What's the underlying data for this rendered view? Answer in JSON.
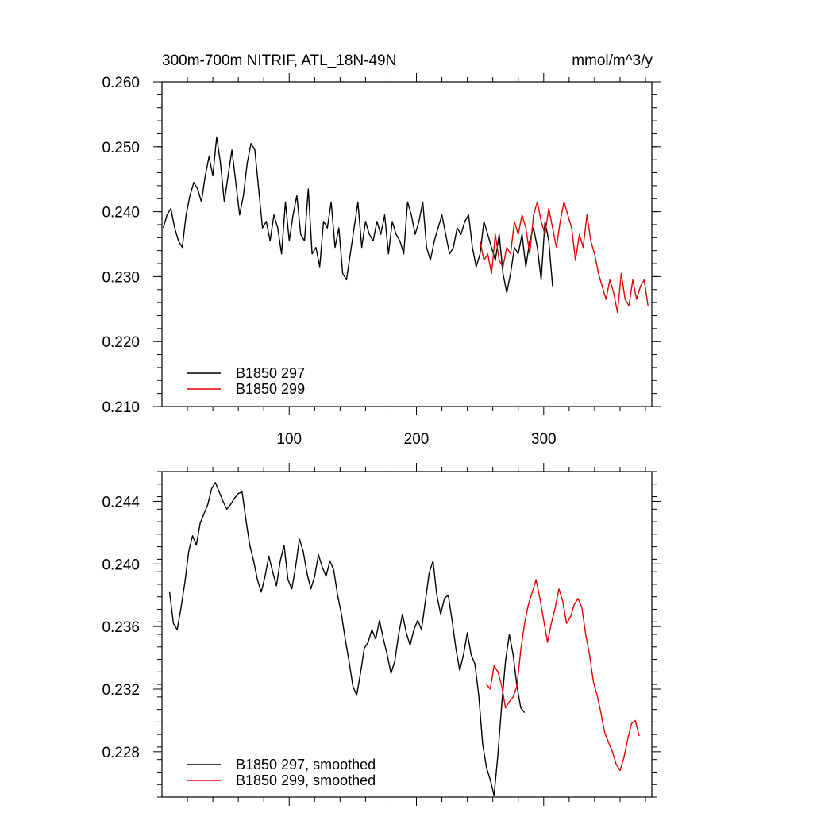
{
  "chart_data": [
    {
      "type": "line",
      "title": "300m-700m NITRIF, ATL_18N-49N",
      "units": "mmol/m^3/y",
      "xlim": [
        0,
        385
      ],
      "ylim": [
        0.21,
        0.26
      ],
      "xticks": [
        100,
        200,
        300
      ],
      "xtick_labels": [
        "100",
        "200",
        "300"
      ],
      "yticks": [
        0.21,
        0.22,
        0.23,
        0.24,
        0.25,
        0.26
      ],
      "ytick_labels": [
        "0.210",
        "0.220",
        "0.230",
        "0.240",
        "0.250",
        "0.260"
      ],
      "legend_position": "bottom-left",
      "series": [
        {
          "name": "B1850 297",
          "color": "#000000",
          "x_start": 1,
          "x_step": 3,
          "values": [
            0.2375,
            0.2395,
            0.2405,
            0.2375,
            0.2355,
            0.2345,
            0.2395,
            0.2425,
            0.2445,
            0.2435,
            0.2415,
            0.2455,
            0.2485,
            0.2455,
            0.2515,
            0.2475,
            0.2415,
            0.2455,
            0.2495,
            0.2445,
            0.2395,
            0.2425,
            0.2475,
            0.2505,
            0.2495,
            0.2435,
            0.2375,
            0.2385,
            0.2355,
            0.2395,
            0.2375,
            0.2335,
            0.2415,
            0.2355,
            0.2395,
            0.2425,
            0.2365,
            0.2355,
            0.2435,
            0.2335,
            0.2345,
            0.2315,
            0.2385,
            0.2375,
            0.2415,
            0.2345,
            0.2375,
            0.2305,
            0.2295,
            0.2335,
            0.2375,
            0.2415,
            0.2345,
            0.2385,
            0.2365,
            0.2355,
            0.2385,
            0.2365,
            0.2395,
            0.2335,
            0.2385,
            0.2365,
            0.2355,
            0.2335,
            0.2415,
            0.2395,
            0.2365,
            0.2385,
            0.2415,
            0.2345,
            0.2325,
            0.2355,
            0.2375,
            0.2395,
            0.2365,
            0.2335,
            0.2345,
            0.2375,
            0.2365,
            0.2385,
            0.2395,
            0.2345,
            0.2315,
            0.2335,
            0.2385,
            0.2365,
            0.2345,
            0.2325,
            0.2365,
            0.2305,
            0.2275,
            0.2305,
            0.2345,
            0.2335,
            0.2365,
            0.2315,
            0.2355,
            0.2375,
            0.2345,
            0.2295,
            0.2385,
            0.2355,
            0.2285
          ]
        },
        {
          "name": "B1850 299",
          "color": "#e60000",
          "x_start": 250,
          "x_step": 3,
          "values": [
            0.2355,
            0.2325,
            0.2335,
            0.2305,
            0.2365,
            0.2325,
            0.2315,
            0.2345,
            0.2335,
            0.2385,
            0.2365,
            0.2395,
            0.2375,
            0.2335,
            0.2395,
            0.2415,
            0.2385,
            0.2365,
            0.2405,
            0.2375,
            0.2345,
            0.2385,
            0.2415,
            0.2395,
            0.2375,
            0.2325,
            0.2365,
            0.2345,
            0.2395,
            0.2355,
            0.2335,
            0.2305,
            0.2285,
            0.2265,
            0.2295,
            0.2275,
            0.2245,
            0.2305,
            0.2265,
            0.2255,
            0.2295,
            0.2265,
            0.2285,
            0.2295,
            0.2255
          ]
        }
      ]
    },
    {
      "type": "line",
      "title": "",
      "xlim": [
        0,
        385
      ],
      "ylim": [
        0.2251,
        0.2459
      ],
      "xticks": [
        100,
        200,
        300
      ],
      "xtick_labels": [
        "100",
        "200",
        "300"
      ],
      "yticks": [
        0.228,
        0.232,
        0.236,
        0.24,
        0.244
      ],
      "ytick_labels": [
        "0.228",
        "0.232",
        "0.236",
        "0.240",
        "0.244"
      ],
      "legend_position": "bottom-left",
      "series": [
        {
          "name": "B1850 297, smoothed",
          "color": "#000000",
          "x_start": 6,
          "x_step": 3,
          "values": [
            0.2382,
            0.2362,
            0.2358,
            0.2372,
            0.2388,
            0.2408,
            0.2418,
            0.2412,
            0.2426,
            0.2432,
            0.2438,
            0.2448,
            0.2452,
            0.2446,
            0.244,
            0.2435,
            0.2438,
            0.2442,
            0.2445,
            0.2446,
            0.2428,
            0.2412,
            0.2402,
            0.239,
            0.2382,
            0.2392,
            0.2405,
            0.2395,
            0.2386,
            0.2402,
            0.2412,
            0.239,
            0.2384,
            0.2398,
            0.2416,
            0.2408,
            0.2394,
            0.2384,
            0.2392,
            0.2406,
            0.2398,
            0.2392,
            0.2402,
            0.2396,
            0.238,
            0.2368,
            0.2352,
            0.2338,
            0.2322,
            0.2316,
            0.233,
            0.2346,
            0.235,
            0.2358,
            0.2352,
            0.2364,
            0.2352,
            0.2342,
            0.233,
            0.2338,
            0.2355,
            0.2368,
            0.2356,
            0.2348,
            0.2358,
            0.2364,
            0.2358,
            0.2376,
            0.2394,
            0.2402,
            0.238,
            0.2368,
            0.2378,
            0.238,
            0.2364,
            0.2346,
            0.2332,
            0.2342,
            0.2356,
            0.2342,
            0.2336,
            0.2316,
            0.2285,
            0.227,
            0.2262,
            0.2252,
            0.2278,
            0.231,
            0.2338,
            0.2355,
            0.2342,
            0.2322,
            0.2308,
            0.2305
          ]
        },
        {
          "name": "B1850 299, smoothed",
          "color": "#e60000",
          "x_start": 255,
          "x_step": 3,
          "values": [
            0.2323,
            0.232,
            0.2335,
            0.2331,
            0.2322,
            0.2308,
            0.2312,
            0.2315,
            0.2322,
            0.2345,
            0.2362,
            0.2374,
            0.2382,
            0.239,
            0.2378,
            0.2364,
            0.235,
            0.2362,
            0.2372,
            0.2384,
            0.2376,
            0.2362,
            0.2366,
            0.2374,
            0.2378,
            0.2372,
            0.2355,
            0.2342,
            0.2325,
            0.2316,
            0.2305,
            0.2292,
            0.2286,
            0.228,
            0.2272,
            0.2268,
            0.2276,
            0.2288,
            0.2298,
            0.23,
            0.229
          ]
        }
      ]
    }
  ]
}
